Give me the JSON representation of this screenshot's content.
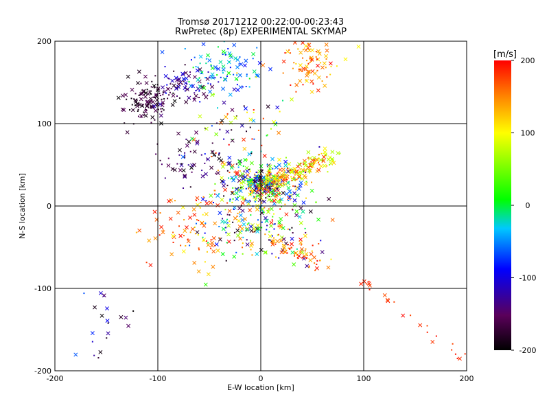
{
  "chart_data": {
    "type": "scatter",
    "title": "Tromsø 20171212 00:22:00-00:23:43",
    "subtitle": "RwPretec (8p) EXPERIMENTAL SKYMAP",
    "xlabel": "E-W location [km]",
    "ylabel": "N-S location [km]",
    "xlim": [
      -200,
      200
    ],
    "ylim": [
      -200,
      200
    ],
    "xticks": [
      -200,
      -100,
      0,
      100,
      200
    ],
    "yticks": [
      -200,
      -100,
      0,
      100,
      200
    ],
    "xtick_labels": [
      "-200",
      "-100",
      "0",
      "100",
      "200"
    ],
    "ytick_labels": [
      "-200",
      "-100",
      "0",
      "100",
      "200"
    ],
    "grid": true,
    "markers": [
      "x",
      "dot"
    ],
    "colorbar": {
      "label": "[m/s]",
      "range": [
        -200,
        200
      ],
      "ticks": [
        200,
        100,
        0,
        -100,
        -200
      ],
      "tick_labels": [
        "200",
        "100",
        "0",
        "-100",
        "-200"
      ],
      "colors": [
        "#000000",
        "#5a005a",
        "#0000ff",
        "#00c8ff",
        "#00ff00",
        "#ffff00",
        "#ff8000",
        "#ff0000"
      ]
    },
    "clusters": [
      {
        "name": "center",
        "cx": 0,
        "cy": 25,
        "sx": 22,
        "sy": 16,
        "n": 300,
        "vmin": -200,
        "vmax": 200
      },
      {
        "name": "center-tight",
        "cx": 0,
        "cy": 28,
        "sx": 8,
        "sy": 6,
        "n": 120,
        "vmin": -200,
        "vmax": 200
      },
      {
        "name": "upper-right-diagonal",
        "cx": 35,
        "cy": 45,
        "sx": 20,
        "sy": 10,
        "n": 140,
        "vmin": 60,
        "vmax": 200
      },
      {
        "name": "lower-center",
        "cx": 0,
        "cy": -20,
        "sx": 30,
        "sy": 25,
        "n": 200,
        "vmin": -200,
        "vmax": 200
      },
      {
        "name": "lower-right-red",
        "cx": 35,
        "cy": -55,
        "sx": 18,
        "sy": 10,
        "n": 60,
        "vmin": 120,
        "vmax": 200
      },
      {
        "name": "lower-left-red",
        "cx": -70,
        "cy": -30,
        "sx": 25,
        "sy": 22,
        "n": 80,
        "vmin": 100,
        "vmax": 200
      },
      {
        "name": "upper-left-black",
        "cx": -110,
        "cy": 128,
        "sx": 14,
        "sy": 14,
        "n": 120,
        "vmin": -200,
        "vmax": -150
      },
      {
        "name": "upper-left-purple",
        "cx": -75,
        "cy": 145,
        "sx": 16,
        "sy": 12,
        "n": 80,
        "vmin": -180,
        "vmax": -80
      },
      {
        "name": "top-cyan",
        "cx": -35,
        "cy": 170,
        "sx": 20,
        "sy": 18,
        "n": 100,
        "vmin": -100,
        "vmax": 20
      },
      {
        "name": "top-right-orange",
        "cx": 50,
        "cy": 175,
        "sx": 14,
        "sy": 16,
        "n": 90,
        "vmin": 100,
        "vmax": 200
      },
      {
        "name": "mid-left-black",
        "cx": -65,
        "cy": 55,
        "sx": 20,
        "sy": 15,
        "n": 60,
        "vmin": -200,
        "vmax": -120
      },
      {
        "name": "upper-mid",
        "cx": -25,
        "cy": 95,
        "sx": 35,
        "sy": 25,
        "n": 80,
        "vmin": -200,
        "vmax": 200
      },
      {
        "name": "far-right-diagonal",
        "cx": 150,
        "cy": -140,
        "sx": 28,
        "sy": 28,
        "n": 25,
        "vmin": 170,
        "vmax": 200
      },
      {
        "name": "sparse-bottom-left",
        "cx": -160,
        "cy": -150,
        "sx": 20,
        "sy": 30,
        "n": 22,
        "vmin": -200,
        "vmax": -60
      }
    ]
  }
}
